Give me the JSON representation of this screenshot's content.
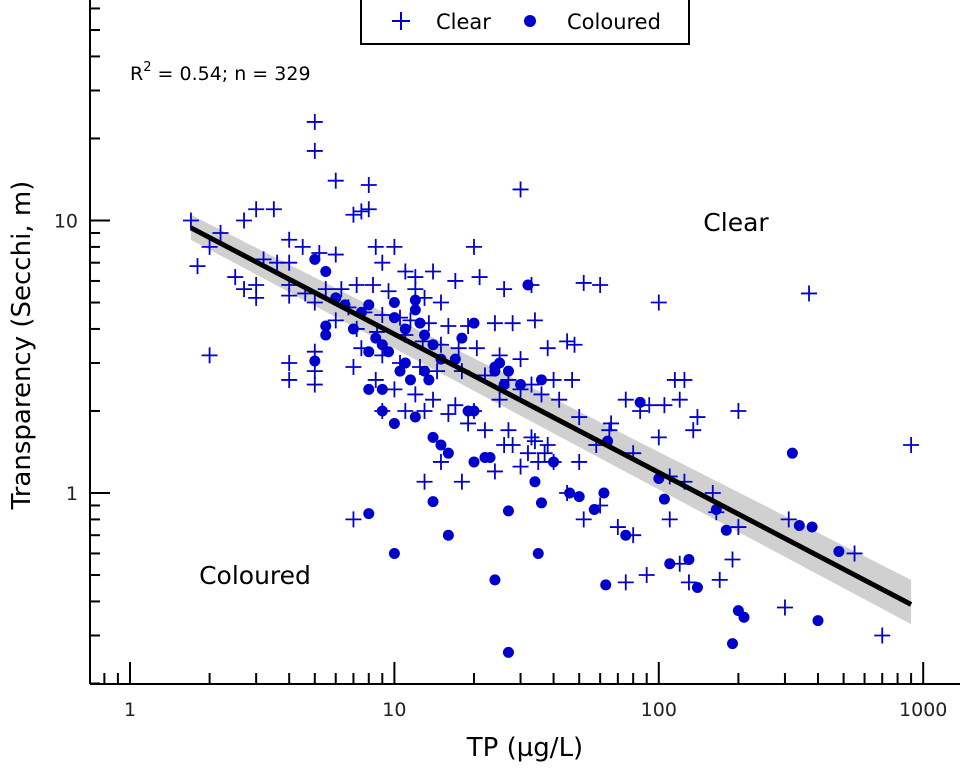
{
  "chart_data": {
    "type": "scatter",
    "x_scale": "log",
    "y_scale": "log",
    "xlabel": "TP (µg/L)",
    "ylabel": "Transparency (Secchi, m)",
    "xlim": [
      0.72,
      1650
    ],
    "ylim": [
      0.24,
      60
    ],
    "x_ticks": [
      {
        "value": 1,
        "label": "1"
      },
      {
        "value": 10,
        "label": "10"
      },
      {
        "value": 100,
        "label": "100"
      },
      {
        "value": 1000,
        "label": "1000"
      }
    ],
    "y_ticks": [
      {
        "value": 1,
        "label": "1"
      },
      {
        "value": 10,
        "label": "10"
      }
    ],
    "legend": {
      "position": "top-center",
      "entries": [
        {
          "name": "Clear",
          "marker": "plus"
        },
        {
          "name": "Coloured",
          "marker": "circle"
        }
      ]
    },
    "annotations": {
      "stats_prefix": "R",
      "stats_sup": "2",
      "stats_rest": " = 0.54; n = 329",
      "region_top": "Clear",
      "region_bottom": "Coloured"
    },
    "regression": {
      "x_range": [
        1.7,
        900
      ],
      "y_start": 9.4,
      "y_end": 0.39,
      "ci_start": [
        8.5,
        10.5
      ],
      "ci_end": [
        0.33,
        0.48
      ]
    },
    "colors": {
      "points": "#0000cc",
      "line": "#000000",
      "ci_band": "#c8c8c8"
    },
    "series": [
      {
        "name": "Clear",
        "marker": "plus",
        "points": [
          [
            5,
            23
          ],
          [
            5,
            18
          ],
          [
            6,
            14
          ],
          [
            8,
            13.5
          ],
          [
            30,
            13
          ],
          [
            1.7,
            10
          ],
          [
            2.7,
            10
          ],
          [
            3,
            11
          ],
          [
            3.5,
            11
          ],
          [
            7,
            10.5
          ],
          [
            7.5,
            10.8
          ],
          [
            8,
            11
          ],
          [
            2,
            8
          ],
          [
            2.2,
            9
          ],
          [
            4,
            8.5
          ],
          [
            4.5,
            8
          ],
          [
            8.5,
            8
          ],
          [
            10,
            8
          ],
          [
            20,
            8
          ],
          [
            1.8,
            6.8
          ],
          [
            2.5,
            6.2
          ],
          [
            3.2,
            7.2
          ],
          [
            3.6,
            7
          ],
          [
            5.2,
            7.6
          ],
          [
            6,
            7.5
          ],
          [
            9,
            7
          ],
          [
            11,
            6.5
          ],
          [
            12,
            6.2
          ],
          [
            14,
            6.5
          ],
          [
            17,
            6
          ],
          [
            21,
            6.2
          ],
          [
            3,
            5.8
          ],
          [
            4,
            5.8
          ],
          [
            4.6,
            5.4
          ],
          [
            5.5,
            5.6
          ],
          [
            6.3,
            5.6
          ],
          [
            7.2,
            5.8
          ],
          [
            8.3,
            5.8
          ],
          [
            9.5,
            5.5
          ],
          [
            12,
            5.6
          ],
          [
            13,
            5.2
          ],
          [
            15,
            5
          ],
          [
            26,
            5.6
          ],
          [
            33,
            5.8
          ],
          [
            52,
            5.9
          ],
          [
            60,
            5.8
          ],
          [
            100,
            5
          ],
          [
            370,
            5.4
          ],
          [
            2.7,
            5.6
          ],
          [
            3,
            5.2
          ],
          [
            4,
            5.3
          ],
          [
            5,
            5
          ],
          [
            6.7,
            4.8
          ],
          [
            7.7,
            4.6
          ],
          [
            9,
            4.5
          ],
          [
            10.5,
            4.4
          ],
          [
            11.5,
            4.3
          ],
          [
            13.5,
            4.2
          ],
          [
            16,
            4.1
          ],
          [
            19,
            4.1
          ],
          [
            24,
            4.2
          ],
          [
            28,
            4.2
          ],
          [
            34,
            4.3
          ],
          [
            6,
            4.3
          ],
          [
            7.2,
            4.0
          ],
          [
            8.6,
            3.9
          ],
          [
            11,
            3.8
          ],
          [
            12.8,
            3.6
          ],
          [
            15,
            3.5
          ],
          [
            17.5,
            3.4
          ],
          [
            20.5,
            3.4
          ],
          [
            25,
            3.2
          ],
          [
            30,
            3.1
          ],
          [
            38,
            3.4
          ],
          [
            45,
            3.6
          ],
          [
            48,
            3.5
          ],
          [
            7.5,
            3.4
          ],
          [
            9,
            3.2
          ],
          [
            10.5,
            3.0
          ],
          [
            12.5,
            2.9
          ],
          [
            14.5,
            2.8
          ],
          [
            18,
            2.8
          ],
          [
            22,
            2.7
          ],
          [
            27,
            2.6
          ],
          [
            33,
            2.5
          ],
          [
            40,
            2.6
          ],
          [
            47,
            2.6
          ],
          [
            115,
            2.6
          ],
          [
            125,
            2.6
          ],
          [
            4,
            3.0
          ],
          [
            4,
            2.6
          ],
          [
            5,
            3.3
          ],
          [
            5,
            2.8
          ],
          [
            5,
            2.5
          ],
          [
            7,
            2.9
          ],
          [
            8.5,
            2.6
          ],
          [
            10,
            2.4
          ],
          [
            12,
            2.3
          ],
          [
            14,
            2.2
          ],
          [
            17,
            2.1
          ],
          [
            20,
            2.0
          ],
          [
            25,
            2.2
          ],
          [
            30,
            2.4
          ],
          [
            36,
            2.3
          ],
          [
            42,
            2.2
          ],
          [
            9,
            2.0
          ],
          [
            11,
            2.0
          ],
          [
            13,
            2.0
          ],
          [
            16,
            1.95
          ],
          [
            19,
            1.8
          ],
          [
            22,
            1.7
          ],
          [
            27,
            1.7
          ],
          [
            33,
            1.6
          ],
          [
            38,
            1.5
          ],
          [
            50,
            1.9
          ],
          [
            58,
            1.5
          ],
          [
            66,
            1.8
          ],
          [
            75,
            2.2
          ],
          [
            85,
            2.0
          ],
          [
            92,
            2.1
          ],
          [
            105,
            2.1
          ],
          [
            120,
            2.2
          ],
          [
            135,
            1.7
          ],
          [
            140,
            1.9
          ],
          [
            200,
            2.0
          ],
          [
            28,
            1.5
          ],
          [
            32,
            1.4
          ],
          [
            37,
            1.4
          ],
          [
            40,
            1.3
          ],
          [
            50,
            1.3
          ],
          [
            65,
            1.7
          ],
          [
            80,
            1.4
          ],
          [
            100,
            1.6
          ],
          [
            110,
            1.15
          ],
          [
            125,
            1.1
          ],
          [
            160,
            1.0
          ],
          [
            900,
            1.5
          ],
          [
            18,
            1.1
          ],
          [
            24,
            1.2
          ],
          [
            30,
            1.25
          ],
          [
            35,
            1.3
          ],
          [
            45,
            1.0
          ],
          [
            52,
            0.8
          ],
          [
            60,
            0.9
          ],
          [
            70,
            0.75
          ],
          [
            80,
            0.7
          ],
          [
            110,
            0.8
          ],
          [
            165,
            0.85
          ],
          [
            200,
            0.75
          ],
          [
            310,
            0.8
          ],
          [
            550,
            0.6
          ],
          [
            7,
            0.8
          ],
          [
            190,
            0.57
          ],
          [
            90,
            0.5
          ],
          [
            75,
            0.47
          ],
          [
            130,
            0.47
          ],
          [
            170,
            0.48
          ],
          [
            120,
            0.55
          ],
          [
            300,
            0.38
          ],
          [
            700,
            0.3
          ],
          [
            13,
            1.1
          ],
          [
            15,
            1.3
          ],
          [
            2,
            3.2
          ],
          [
            4,
            7
          ],
          [
            26,
            1.5
          ],
          [
            34,
            1.55
          ]
        ]
      },
      {
        "name": "Coloured",
        "marker": "circle",
        "points": [
          [
            5,
            7.2
          ],
          [
            5.5,
            6.5
          ],
          [
            6,
            5.2
          ],
          [
            6.5,
            4.9
          ],
          [
            5.5,
            4.1
          ],
          [
            5.5,
            3.8
          ],
          [
            7,
            4.0
          ],
          [
            7.5,
            4.6
          ],
          [
            8,
            4.9
          ],
          [
            8.5,
            3.7
          ],
          [
            9,
            3.5
          ],
          [
            9.5,
            3.3
          ],
          [
            10,
            4.4
          ],
          [
            10,
            5.0
          ],
          [
            11,
            4.0
          ],
          [
            11,
            3.0
          ],
          [
            12,
            5.1
          ],
          [
            12,
            4.7
          ],
          [
            12.5,
            4.2
          ],
          [
            13,
            3.8
          ],
          [
            14,
            3.5
          ],
          [
            15,
            3.1
          ],
          [
            17,
            3.1
          ],
          [
            18,
            3.7
          ],
          [
            20,
            4.2
          ],
          [
            13,
            2.8
          ],
          [
            10.5,
            2.8
          ],
          [
            11.5,
            2.6
          ],
          [
            8,
            2.4
          ],
          [
            9,
            2.4
          ],
          [
            9,
            2.0
          ],
          [
            10,
            1.8
          ],
          [
            12,
            1.9
          ],
          [
            14,
            1.6
          ],
          [
            15,
            1.5
          ],
          [
            16,
            1.4
          ],
          [
            19,
            2.0
          ],
          [
            22,
            1.35
          ],
          [
            23,
            1.35
          ],
          [
            24,
            2.8
          ],
          [
            25,
            3.0
          ],
          [
            27,
            2.8
          ],
          [
            30,
            2.5
          ],
          [
            32,
            5.8
          ],
          [
            36,
            2.6
          ],
          [
            20,
            2.0
          ],
          [
            5,
            3.05
          ],
          [
            8,
            3.3
          ],
          [
            13.5,
            2.6
          ],
          [
            24,
            2.9
          ],
          [
            26,
            2.5
          ],
          [
            34,
            1.1
          ],
          [
            36,
            0.92
          ],
          [
            40,
            1.3
          ],
          [
            46,
            1.0
          ],
          [
            50,
            0.97
          ],
          [
            57,
            0.87
          ],
          [
            62,
            1.0
          ],
          [
            64,
            1.55
          ],
          [
            14,
            0.93
          ],
          [
            8,
            0.84
          ],
          [
            16,
            0.7
          ],
          [
            27,
            0.86
          ],
          [
            24,
            0.48
          ],
          [
            10,
            0.6
          ],
          [
            35,
            0.6
          ],
          [
            63,
            0.46
          ],
          [
            75,
            0.7
          ],
          [
            85,
            2.15
          ],
          [
            100,
            1.13
          ],
          [
            105,
            0.95
          ],
          [
            110,
            0.55
          ],
          [
            130,
            0.57
          ],
          [
            140,
            0.45
          ],
          [
            165,
            0.87
          ],
          [
            180,
            0.73
          ],
          [
            200,
            0.37
          ],
          [
            210,
            0.35
          ],
          [
            190,
            0.28
          ],
          [
            320,
            1.4
          ],
          [
            340,
            0.76
          ],
          [
            380,
            0.75
          ],
          [
            400,
            0.34
          ],
          [
            480,
            0.61
          ],
          [
            27,
            0.26
          ],
          [
            20,
            1.3
          ]
        ]
      }
    ]
  }
}
